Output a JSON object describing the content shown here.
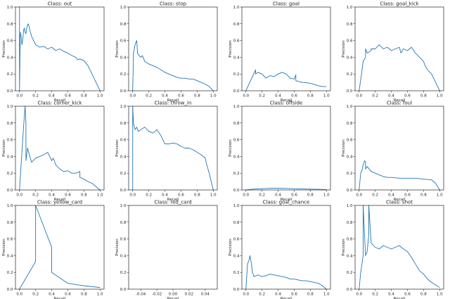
{
  "figure": {
    "colors": {
      "line": "#1f77b4",
      "axis": "#000000",
      "text": "#222222",
      "background": "#ffffff"
    }
  },
  "chart_data": [
    {
      "type": "line",
      "title": "Class: out",
      "xlabel": "Recall",
      "ylabel": "Precision",
      "xlim": [
        -0.05,
        1.05
      ],
      "ylim": [
        0,
        1.0
      ],
      "xticks": [
        0.0,
        0.2,
        0.4,
        0.6,
        0.8,
        1.0
      ],
      "yticks": [
        0.0,
        0.2,
        0.4,
        0.6,
        0.8,
        1.0
      ],
      "series": [
        {
          "x": [
            0.0,
            0.0,
            0.0,
            0.01,
            0.02,
            0.03,
            0.04,
            0.05,
            0.06,
            0.07,
            0.08,
            0.09,
            0.1,
            0.11,
            0.12,
            0.13,
            0.15,
            0.2,
            0.25,
            0.3,
            0.35,
            0.4,
            0.45,
            0.5,
            0.55,
            0.6,
            0.65,
            0.7,
            0.72,
            0.75,
            0.8,
            0.85,
            0.9,
            0.95,
            1.0
          ],
          "y": [
            0.0,
            1.0,
            0.0,
            0.7,
            0.65,
            0.55,
            0.6,
            0.72,
            0.75,
            0.7,
            0.68,
            0.75,
            0.78,
            0.8,
            0.76,
            0.72,
            0.65,
            0.55,
            0.52,
            0.53,
            0.5,
            0.52,
            0.48,
            0.5,
            0.47,
            0.45,
            0.42,
            0.4,
            0.37,
            0.38,
            0.36,
            0.3,
            0.2,
            0.1,
            0.0
          ]
        }
      ]
    },
    {
      "type": "line",
      "title": "Class: stop",
      "xlabel": "Recall",
      "ylabel": "Precision",
      "xlim": [
        -0.05,
        1.05
      ],
      "ylim": [
        0,
        1.0
      ],
      "xticks": [
        0.0,
        0.2,
        0.4,
        0.6,
        0.8,
        1.0
      ],
      "yticks": [
        0.0,
        0.2,
        0.4,
        0.6,
        0.8,
        1.0
      ],
      "series": [
        {
          "x": [
            0.0,
            0.01,
            0.02,
            0.03,
            0.04,
            0.05,
            0.06,
            0.08,
            0.1,
            0.12,
            0.15,
            0.2,
            0.25,
            0.3,
            0.35,
            0.4,
            0.45,
            0.5,
            0.55,
            0.6,
            0.65,
            0.7,
            0.75,
            0.8,
            0.85,
            0.9,
            0.95,
            1.0
          ],
          "y": [
            0.0,
            0.45,
            0.5,
            0.55,
            0.58,
            0.6,
            0.45,
            0.42,
            0.4,
            0.42,
            0.35,
            0.32,
            0.3,
            0.28,
            0.25,
            0.22,
            0.2,
            0.18,
            0.16,
            0.15,
            0.15,
            0.14,
            0.14,
            0.12,
            0.1,
            0.08,
            0.05,
            0.0
          ]
        }
      ]
    },
    {
      "type": "line",
      "title": "Class: goal",
      "xlabel": "Recall",
      "ylabel": "Precision",
      "xlim": [
        -0.05,
        1.05
      ],
      "ylim": [
        0,
        1.0
      ],
      "xticks": [
        0.0,
        0.2,
        0.4,
        0.6,
        0.8,
        1.0
      ],
      "yticks": [
        0.0,
        0.2,
        0.4,
        0.6,
        0.8,
        1.0
      ],
      "series": [
        {
          "x": [
            0.0,
            0.12,
            0.12,
            0.15,
            0.2,
            0.25,
            0.3,
            0.35,
            0.4,
            0.45,
            0.5,
            0.55,
            0.6,
            0.62,
            0.62,
            0.7,
            0.8,
            0.9,
            0.95,
            1.0
          ],
          "y": [
            0.0,
            0.25,
            0.2,
            0.22,
            0.2,
            0.15,
            0.18,
            0.17,
            0.2,
            0.22,
            0.2,
            0.15,
            0.14,
            0.19,
            0.12,
            0.1,
            0.09,
            0.06,
            0.05,
            0.05
          ]
        }
      ]
    },
    {
      "type": "line",
      "title": "Class: goal_kick",
      "xlabel": "Recall",
      "ylabel": "Precision",
      "xlim": [
        -0.05,
        1.05
      ],
      "ylim": [
        0,
        1.0
      ],
      "xticks": [
        0.0,
        0.2,
        0.4,
        0.6,
        0.8,
        1.0
      ],
      "yticks": [
        0.0,
        0.2,
        0.4,
        0.6,
        0.8,
        1.0
      ],
      "series": [
        {
          "x": [
            0.0,
            0.03,
            0.05,
            0.08,
            0.08,
            0.1,
            0.15,
            0.15,
            0.2,
            0.25,
            0.3,
            0.35,
            0.4,
            0.45,
            0.5,
            0.52,
            0.55,
            0.6,
            0.65,
            0.7,
            0.75,
            0.8,
            0.82,
            0.85,
            0.9,
            0.95,
            1.0
          ],
          "y": [
            0.0,
            0.2,
            0.35,
            0.4,
            0.5,
            0.45,
            0.48,
            0.5,
            0.5,
            0.55,
            0.5,
            0.52,
            0.48,
            0.5,
            0.52,
            0.45,
            0.5,
            0.48,
            0.52,
            0.45,
            0.4,
            0.35,
            0.3,
            0.25,
            0.2,
            0.1,
            0.0
          ]
        }
      ]
    },
    {
      "type": "line",
      "title": "Class: corner_kick",
      "xlabel": "Recall",
      "ylabel": "Precision",
      "xlim": [
        -0.05,
        1.05
      ],
      "ylim": [
        0,
        1.0
      ],
      "xticks": [
        0.0,
        0.2,
        0.4,
        0.6,
        0.8,
        1.0
      ],
      "yticks": [
        0.0,
        0.2,
        0.4,
        0.6,
        0.8,
        1.0
      ],
      "series": [
        {
          "x": [
            0.0,
            0.03,
            0.05,
            0.07,
            0.08,
            0.08,
            0.1,
            0.15,
            0.2,
            0.25,
            0.3,
            0.35,
            0.4,
            0.42,
            0.45,
            0.5,
            0.55,
            0.6,
            0.65,
            0.7,
            0.75,
            0.75,
            0.8,
            0.85,
            0.9,
            0.95,
            1.0
          ],
          "y": [
            0.0,
            0.45,
            0.75,
            1.0,
            0.8,
            0.35,
            0.5,
            0.33,
            0.38,
            0.4,
            0.42,
            0.45,
            0.35,
            0.38,
            0.3,
            0.25,
            0.22,
            0.23,
            0.2,
            0.2,
            0.22,
            0.15,
            0.13,
            0.1,
            0.08,
            0.04,
            0.0
          ]
        }
      ]
    },
    {
      "type": "line",
      "title": "Class: throw_in",
      "xlabel": "Recall",
      "ylabel": "Precision",
      "xlim": [
        -0.05,
        1.05
      ],
      "ylim": [
        0,
        1.0
      ],
      "xticks": [
        0.0,
        0.2,
        0.4,
        0.6,
        0.8,
        1.0
      ],
      "yticks": [
        0.0,
        0.2,
        0.4,
        0.6,
        0.8,
        1.0
      ],
      "series": [
        {
          "x": [
            0.0,
            0.0,
            0.01,
            0.02,
            0.03,
            0.05,
            0.07,
            0.1,
            0.15,
            0.2,
            0.25,
            0.3,
            0.35,
            0.4,
            0.45,
            0.5,
            0.55,
            0.6,
            0.65,
            0.7,
            0.75,
            0.8,
            0.85,
            0.9,
            0.92,
            0.95,
            1.0
          ],
          "y": [
            0.0,
            1.0,
            0.8,
            0.75,
            0.72,
            0.75,
            0.7,
            0.72,
            0.75,
            0.7,
            0.68,
            0.72,
            0.65,
            0.55,
            0.55,
            0.56,
            0.55,
            0.52,
            0.5,
            0.5,
            0.48,
            0.45,
            0.42,
            0.38,
            0.3,
            0.2,
            0.0
          ]
        }
      ]
    },
    {
      "type": "line",
      "title": "Class: offside",
      "xlabel": "Recall",
      "ylabel": "Precision",
      "xlim": [
        -0.05,
        1.05
      ],
      "ylim": [
        0,
        1.0
      ],
      "xticks": [
        0.0,
        0.2,
        0.4,
        0.6,
        0.8,
        1.0
      ],
      "yticks": [
        0.0,
        0.2,
        0.4,
        0.6,
        0.8,
        1.0
      ],
      "series": [
        {
          "x": [
            0.0,
            0.1,
            0.2,
            0.3,
            0.4,
            0.5,
            0.6,
            0.7,
            0.8,
            0.9,
            1.0
          ],
          "y": [
            0.0,
            0.01,
            0.015,
            0.02,
            0.02,
            0.018,
            0.015,
            0.012,
            0.01,
            0.008,
            0.005
          ]
        }
      ]
    },
    {
      "type": "line",
      "title": "Class: foul",
      "xlabel": "Recall",
      "ylabel": "Precision",
      "xlim": [
        -0.05,
        1.05
      ],
      "ylim": [
        0,
        1.0
      ],
      "xticks": [
        0.0,
        0.2,
        0.4,
        0.6,
        0.8,
        1.0
      ],
      "yticks": [
        0.0,
        0.2,
        0.4,
        0.6,
        0.8,
        1.0
      ],
      "series": [
        {
          "x": [
            0.0,
            0.02,
            0.04,
            0.05,
            0.07,
            0.08,
            0.08,
            0.1,
            0.15,
            0.2,
            0.25,
            0.3,
            0.35,
            0.4,
            0.5,
            0.6,
            0.7,
            0.8,
            0.9,
            0.95,
            1.0
          ],
          "y": [
            0.0,
            0.2,
            0.25,
            0.3,
            0.35,
            0.33,
            0.25,
            0.28,
            0.22,
            0.2,
            0.18,
            0.16,
            0.15,
            0.15,
            0.14,
            0.14,
            0.14,
            0.13,
            0.12,
            0.08,
            0.0
          ]
        }
      ]
    },
    {
      "type": "line",
      "title": "Class: yellow_card",
      "xlabel": "Recall",
      "ylabel": "Precision",
      "xlim": [
        -0.05,
        1.05
      ],
      "ylim": [
        0,
        1.0
      ],
      "xticks": [
        0.0,
        0.2,
        0.4,
        0.6,
        0.8,
        1.0
      ],
      "yticks": [
        0.0,
        0.2,
        0.4,
        0.6,
        0.8,
        1.0
      ],
      "series": [
        {
          "x": [
            0.0,
            0.2,
            0.2,
            0.4,
            0.4,
            0.4,
            0.6,
            0.8,
            1.0
          ],
          "y": [
            0.0,
            0.33,
            1.0,
            0.5,
            0.3,
            0.2,
            0.07,
            0.04,
            0.02
          ]
        }
      ]
    },
    {
      "type": "line",
      "title": "Class: red_card",
      "xlabel": "Recall",
      "ylabel": "Precision",
      "xlim": [
        -0.055,
        0.055
      ],
      "ylim": [
        0,
        1.0
      ],
      "xticks": [
        -0.04,
        -0.02,
        0.0,
        0.02,
        0.04
      ],
      "yticks": [
        0.0,
        0.2,
        0.4,
        0.6,
        0.8,
        1.0
      ],
      "series": [
        {
          "x": [],
          "y": []
        }
      ]
    },
    {
      "type": "line",
      "title": "Class: goal_chance",
      "xlabel": "Recall",
      "ylabel": "Precision",
      "xlim": [
        -0.05,
        1.05
      ],
      "ylim": [
        0,
        1.0
      ],
      "xticks": [
        0.0,
        0.2,
        0.4,
        0.6,
        0.8,
        1.0
      ],
      "yticks": [
        0.0,
        0.2,
        0.4,
        0.6,
        0.8,
        1.0
      ],
      "series": [
        {
          "x": [
            0.0,
            0.02,
            0.04,
            0.05,
            0.06,
            0.07,
            0.08,
            0.09,
            0.1,
            0.15,
            0.2,
            0.25,
            0.3,
            0.35,
            0.4,
            0.45,
            0.5,
            0.55,
            0.6,
            0.65,
            0.7,
            0.75,
            0.8,
            0.85,
            0.9,
            0.95,
            1.0
          ],
          "y": [
            0.0,
            0.3,
            0.35,
            0.4,
            0.35,
            0.3,
            0.2,
            0.18,
            0.15,
            0.17,
            0.15,
            0.16,
            0.18,
            0.17,
            0.16,
            0.15,
            0.14,
            0.12,
            0.12,
            0.11,
            0.1,
            0.1,
            0.09,
            0.08,
            0.07,
            0.04,
            0.0
          ]
        }
      ]
    },
    {
      "type": "line",
      "title": "Class: shot",
      "xlabel": "Recall",
      "ylabel": "Precision",
      "xlim": [
        -0.05,
        1.05
      ],
      "ylim": [
        0,
        1.0
      ],
      "xticks": [
        0.0,
        0.2,
        0.4,
        0.6,
        0.8,
        1.0
      ],
      "yticks": [
        0.0,
        0.2,
        0.4,
        0.6,
        0.8,
        1.0
      ],
      "series": [
        {
          "x": [
            0.0,
            0.02,
            0.05,
            0.05,
            0.08,
            0.1,
            0.12,
            0.12,
            0.15,
            0.2,
            0.25,
            0.3,
            0.35,
            0.4,
            0.45,
            0.5,
            0.55,
            0.6,
            0.65,
            0.7,
            0.75,
            0.8,
            0.85,
            0.9,
            0.95,
            1.0
          ],
          "y": [
            0.0,
            0.2,
            0.4,
            1.0,
            0.4,
            0.45,
            0.65,
            1.0,
            0.55,
            0.5,
            0.48,
            0.52,
            0.5,
            0.48,
            0.5,
            0.52,
            0.48,
            0.45,
            0.38,
            0.3,
            0.22,
            0.18,
            0.12,
            0.08,
            0.05,
            0.02
          ]
        }
      ]
    }
  ]
}
